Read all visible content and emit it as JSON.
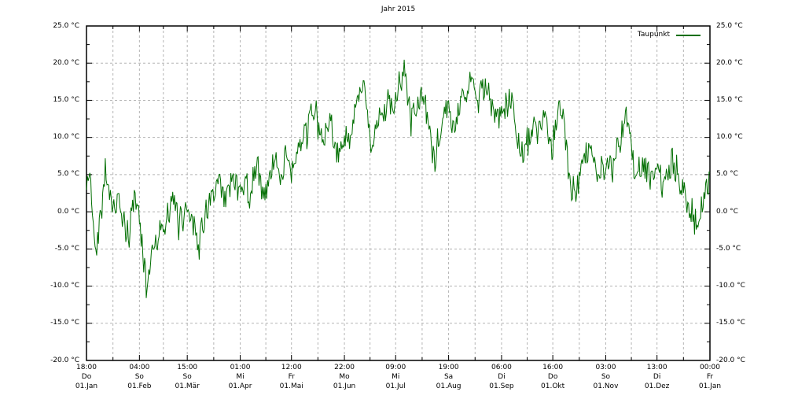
{
  "chart_data": {
    "type": "line",
    "title": "Jahr 2015",
    "legend": {
      "label": "Taupunkt",
      "position": "top-right-inside"
    },
    "grid": {
      "on": true,
      "color": "#b4b4b4",
      "style": "dashed"
    },
    "border_color": "#000000",
    "y_axis": {
      "min": -20,
      "max": 25,
      "major_step": 5,
      "minor_step": 2.5,
      "unit": "°C",
      "mirrored_right": true,
      "ticks": [
        {
          "value": 25,
          "label": "25.0 °C"
        },
        {
          "value": 20,
          "label": "20.0 °C"
        },
        {
          "value": 15,
          "label": "15.0 °C"
        },
        {
          "value": 10,
          "label": "10.0 °C"
        },
        {
          "value": 5,
          "label": "5.0 °C"
        },
        {
          "value": 0,
          "label": "0.0 °C"
        },
        {
          "value": -5,
          "label": "-5.0 °C"
        },
        {
          "value": -10,
          "label": "-10.0 °C"
        },
        {
          "value": -15,
          "label": "-15.0 °C"
        },
        {
          "value": -20,
          "label": "-20.0 °C"
        }
      ]
    },
    "x_axis": {
      "total_days": 365,
      "minor_ticks_at_mid_month": true,
      "ticks": [
        {
          "time": "18:00",
          "weekday": "Do",
          "date": "01.Jan",
          "day": 0
        },
        {
          "time": "04:00",
          "weekday": "So",
          "date": "01.Feb",
          "day": 31
        },
        {
          "time": "15:00",
          "weekday": "So",
          "date": "01.Mär",
          "day": 59
        },
        {
          "time": "01:00",
          "weekday": "Mi",
          "date": "01.Apr",
          "day": 90
        },
        {
          "time": "12:00",
          "weekday": "Fr",
          "date": "01.Mai",
          "day": 120
        },
        {
          "time": "22:00",
          "weekday": "Mo",
          "date": "01.Jun",
          "day": 151
        },
        {
          "time": "09:00",
          "weekday": "Mi",
          "date": "01.Jul",
          "day": 181
        },
        {
          "time": "19:00",
          "weekday": "Sa",
          "date": "01.Aug",
          "day": 212
        },
        {
          "time": "06:00",
          "weekday": "Di",
          "date": "01.Sep",
          "day": 243
        },
        {
          "time": "16:00",
          "weekday": "Do",
          "date": "01.Okt",
          "day": 273
        },
        {
          "time": "03:00",
          "weekday": "So",
          "date": "01.Nov",
          "day": 304
        },
        {
          "time": "13:00",
          "weekday": "Di",
          "date": "01.Dez",
          "day": 334
        },
        {
          "time": "00:00",
          "weekday": "Fr",
          "date": "01.Jan",
          "day": 365
        }
      ]
    },
    "series": [
      {
        "name": "Taupunkt",
        "color": "#006e00",
        "observed_extremes": {
          "max_c": 22.7,
          "max_at": "early Jul",
          "min_c": -11.6,
          "min_at": "early Feb"
        },
        "envelope_points_day_degc": [
          [
            0,
            3
          ],
          [
            2,
            5
          ],
          [
            4,
            -2
          ],
          [
            6,
            -4
          ],
          [
            8,
            0
          ],
          [
            11,
            7
          ],
          [
            13,
            4
          ],
          [
            16,
            0
          ],
          [
            19,
            1
          ],
          [
            22,
            -2
          ],
          [
            25,
            -4
          ],
          [
            27,
            1
          ],
          [
            29,
            2
          ],
          [
            31,
            -1
          ],
          [
            33,
            -5
          ],
          [
            35,
            -9.5
          ],
          [
            37,
            -7
          ],
          [
            39,
            -4
          ],
          [
            42,
            -2
          ],
          [
            45,
            -3
          ],
          [
            48,
            -1
          ],
          [
            51,
            0
          ],
          [
            54,
            -2
          ],
          [
            57,
            0
          ],
          [
            60,
            1
          ],
          [
            63,
            -1
          ],
          [
            66,
            -3
          ],
          [
            69,
            0
          ],
          [
            72,
            2
          ],
          [
            75,
            1
          ],
          [
            78,
            3
          ],
          [
            81,
            1
          ],
          [
            84,
            3
          ],
          [
            87,
            5
          ],
          [
            90,
            3
          ],
          [
            93,
            5
          ],
          [
            96,
            3
          ],
          [
            99,
            6
          ],
          [
            102,
            4
          ],
          [
            105,
            2
          ],
          [
            108,
            5
          ],
          [
            111,
            7
          ],
          [
            114,
            5
          ],
          [
            117,
            7
          ],
          [
            120,
            6
          ],
          [
            123,
            8
          ],
          [
            126,
            10
          ],
          [
            129,
            9
          ],
          [
            132,
            13
          ],
          [
            134,
            14
          ],
          [
            136,
            10
          ],
          [
            139,
            9
          ],
          [
            142,
            11
          ],
          [
            145,
            9
          ],
          [
            148,
            8
          ],
          [
            151,
            10
          ],
          [
            154,
            8
          ],
          [
            157,
            12
          ],
          [
            160,
            14
          ],
          [
            162,
            16
          ],
          [
            164,
            13
          ],
          [
            167,
            10
          ],
          [
            170,
            13
          ],
          [
            173,
            12
          ],
          [
            176,
            14
          ],
          [
            179,
            13
          ],
          [
            182,
            15
          ],
          [
            184,
            19
          ],
          [
            186,
            20
          ],
          [
            188,
            17
          ],
          [
            190,
            13
          ],
          [
            192,
            15
          ],
          [
            195,
            17
          ],
          [
            198,
            14
          ],
          [
            201,
            11
          ],
          [
            204,
            8
          ],
          [
            207,
            9
          ],
          [
            210,
            14
          ],
          [
            212,
            16
          ],
          [
            214,
            11
          ],
          [
            217,
            12
          ],
          [
            220,
            15
          ],
          [
            222,
            17
          ],
          [
            224,
            19
          ],
          [
            226,
            17
          ],
          [
            229,
            14
          ],
          [
            232,
            16
          ],
          [
            234,
            18
          ],
          [
            237,
            14
          ],
          [
            240,
            11
          ],
          [
            243,
            12
          ],
          [
            246,
            14
          ],
          [
            249,
            15
          ],
          [
            252,
            10
          ],
          [
            255,
            8
          ],
          [
            258,
            9
          ],
          [
            261,
            11
          ],
          [
            264,
            10
          ],
          [
            267,
            11
          ],
          [
            270,
            9
          ],
          [
            273,
            10
          ],
          [
            276,
            13
          ],
          [
            278,
            14
          ],
          [
            281,
            8
          ],
          [
            284,
            4
          ],
          [
            287,
            3
          ],
          [
            290,
            7
          ],
          [
            293,
            9
          ],
          [
            296,
            8
          ],
          [
            299,
            6
          ],
          [
            302,
            7
          ],
          [
            305,
            6
          ],
          [
            308,
            5
          ],
          [
            311,
            8
          ],
          [
            314,
            11
          ],
          [
            317,
            12
          ],
          [
            319,
            9
          ],
          [
            322,
            6
          ],
          [
            325,
            8
          ],
          [
            328,
            7
          ],
          [
            331,
            5
          ],
          [
            334,
            6
          ],
          [
            337,
            3
          ],
          [
            340,
            4
          ],
          [
            343,
            6
          ],
          [
            346,
            5
          ],
          [
            349,
            3
          ],
          [
            352,
            1
          ],
          [
            355,
            -0.5
          ],
          [
            357,
            -2
          ],
          [
            359,
            0
          ],
          [
            361,
            2
          ],
          [
            363,
            3
          ],
          [
            364,
            4
          ]
        ],
        "noise": {
          "seed": 42,
          "hf_amplitude": 1.8,
          "walk_step": 1.6,
          "walk_decay": 0.85,
          "samples_per_day": 2,
          "clamp_min": -11.6,
          "clamp_max": 22.7
        }
      }
    ]
  }
}
